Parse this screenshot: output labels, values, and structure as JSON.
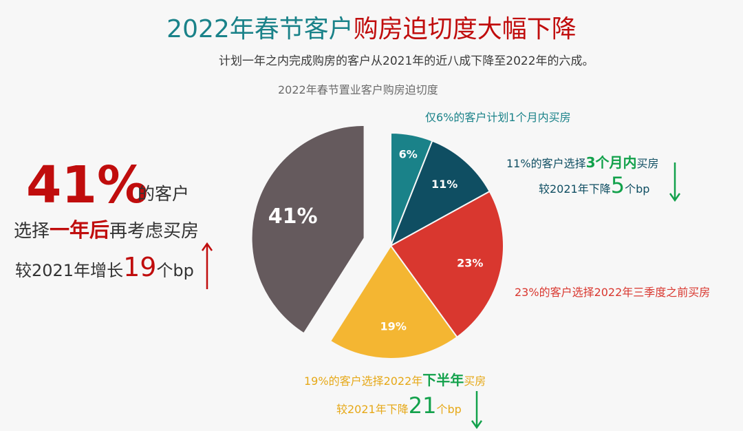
{
  "title": {
    "part1": "2022年春节客户",
    "part2": "购房迫切度大幅下降",
    "color1": "#1a8289",
    "color2": "#c00d0d"
  },
  "subtitle": "计划一年之内完成购房的客户从2021年的近八成下降至2022年的六成。",
  "left_callout": {
    "big_value": "41%",
    "suffix": "的客户",
    "line2_pre": "选择",
    "line2_emph": "一年后",
    "line2_post": "再考虑买房",
    "line3_pre": "较2021年增长",
    "line3_num": "19",
    "line3_post": "个bp",
    "arrow": "up-arrow"
  },
  "annotations": {
    "a6": {
      "text": "仅6%的客户计划1个月内买房"
    },
    "a11": {
      "pre": "11%的客户选择",
      "emph": "3个月内",
      "post": "买房",
      "sub_pre": "较2021年下降",
      "sub_num": "5",
      "sub_post": "个bp",
      "arrow": "down-arrow"
    },
    "a23": {
      "text": "23%的客户选择2022年三季度之前买房"
    },
    "a19": {
      "pre": "19%的客户选择2022年",
      "emph": "下半年",
      "post": "买房",
      "sub_pre": "较2021年下降",
      "sub_num": "21",
      "sub_post": "个bp",
      "arrow": "down-arrow"
    }
  },
  "chart_data": {
    "type": "pie",
    "title": "2022年春节置业客户购房迫切度",
    "slices": [
      {
        "label": "6%",
        "value": 6,
        "color": "#1a8289"
      },
      {
        "label": "11%",
        "value": 11,
        "color": "#0f4e62"
      },
      {
        "label": "23%",
        "value": 23,
        "color": "#d9372f"
      },
      {
        "label": "19%",
        "value": 19,
        "color": "#f4b632"
      },
      {
        "label": "41%",
        "value": 41,
        "color": "#655a5d",
        "exploded": true
      }
    ]
  }
}
